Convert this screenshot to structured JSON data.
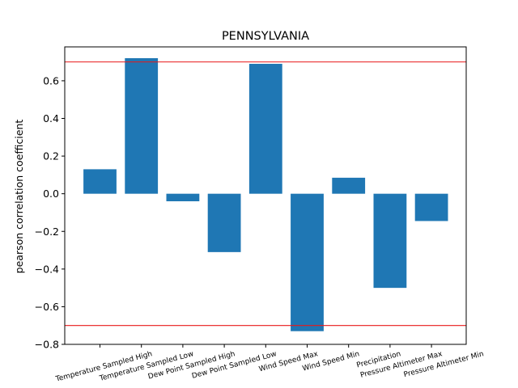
{
  "chart_data": {
    "type": "bar",
    "title": "PENNSYLVANIA",
    "xlabel": "",
    "ylabel": "pearson correlation coefficient",
    "categories": [
      "Temperature Sampled High",
      "Temperature Sampled Low",
      "Dew Point Sampled High",
      "Dew Point Sampled Low",
      "Wind Speed Max",
      "Wind Speed Min",
      "Precipitation",
      "Pressure Altimeter Max",
      "Pressure Altimeter Min"
    ],
    "values": [
      0.13,
      0.72,
      -0.04,
      -0.31,
      0.69,
      -0.73,
      0.085,
      -0.5,
      -0.145
    ],
    "ylim": [
      -0.8,
      0.78
    ],
    "yticks": [
      -0.8,
      -0.6,
      -0.4,
      -0.2,
      0.0,
      0.2,
      0.4,
      0.6
    ],
    "ytick_labels": [
      "−0.8",
      "−0.6",
      "−0.4",
      "−0.2",
      "0.0",
      "0.2",
      "0.4",
      "0.6"
    ],
    "reference_lines": [
      0.7,
      -0.7
    ],
    "grid": false,
    "bar_color": "#1f77b4",
    "reference_line_color": "#e8181a"
  }
}
